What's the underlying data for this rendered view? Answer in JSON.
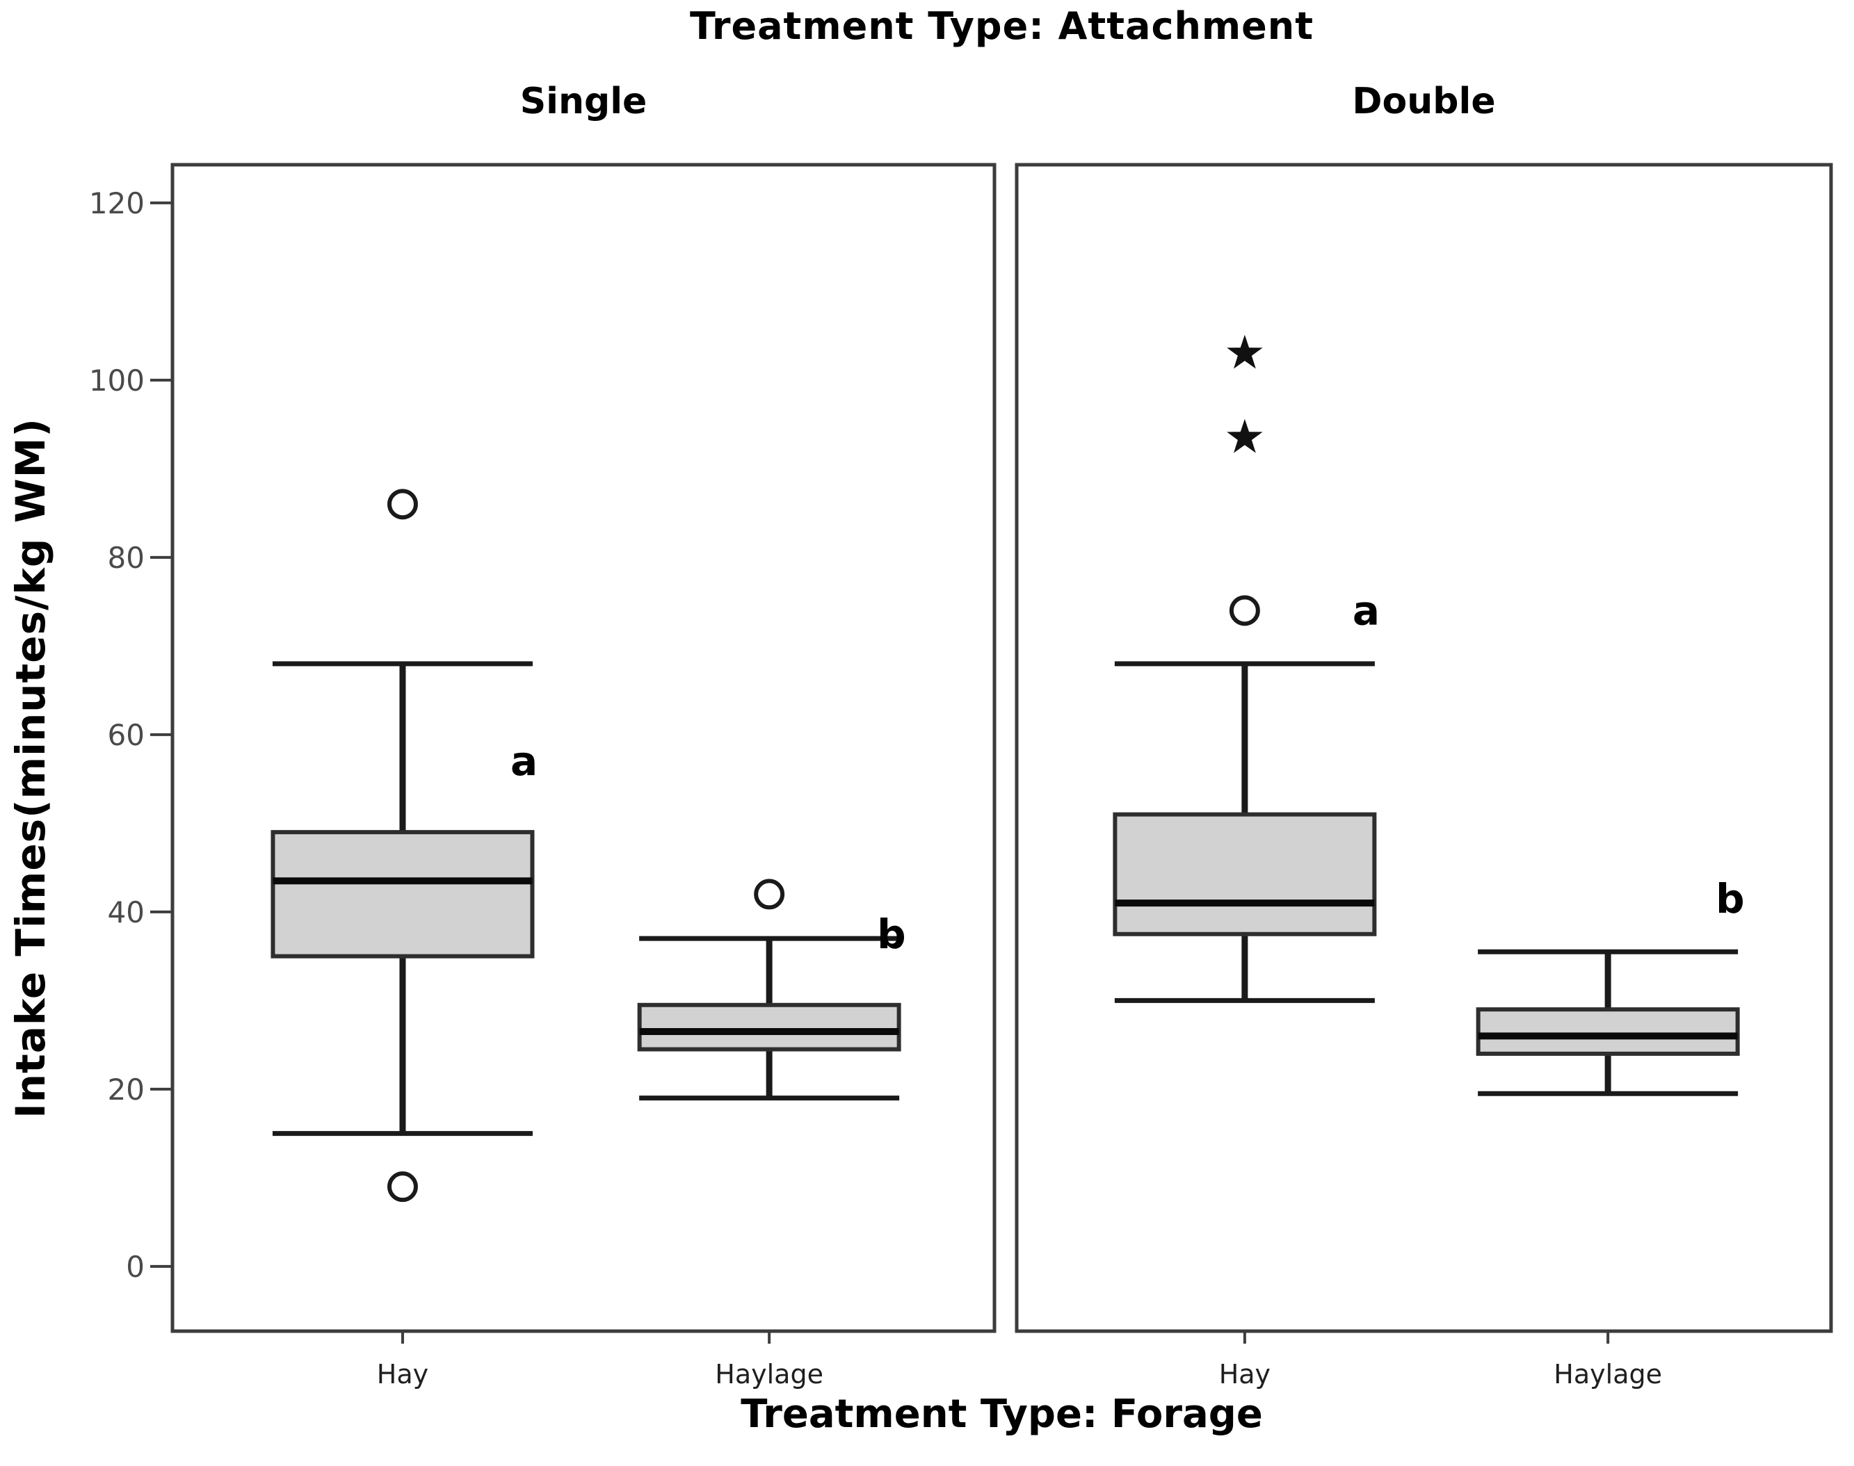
{
  "chart_data": {
    "type": "boxplot",
    "title": "Treatment Type: Attachment",
    "xlabel": "Treatment Type: Forage",
    "ylabel": "Intake Times(minutes/kg WM)",
    "y_ticks": [
      0,
      20,
      40,
      60,
      80,
      100,
      120
    ],
    "ylim": [
      -7.3,
      124.3
    ],
    "grid": false,
    "legend": "none",
    "categories": [
      "Hay",
      "Haylage"
    ],
    "panels": [
      {
        "label": "Single",
        "boxes": [
          {
            "category": "Hay",
            "q1": 35,
            "median": 43.5,
            "q3": 49,
            "whisker_low": 15,
            "whisker_high": 68,
            "outliers": [
              86,
              9
            ],
            "extremes": [],
            "sig_letter": "a",
            "sig_value": 57
          },
          {
            "category": "Haylage",
            "q1": 24.5,
            "median": 26.5,
            "q3": 29.5,
            "whisker_low": 19,
            "whisker_high": 37,
            "outliers": [
              42
            ],
            "extremes": [],
            "sig_letter": "b",
            "sig_value": 37.5
          }
        ]
      },
      {
        "label": "Double",
        "boxes": [
          {
            "category": "Hay",
            "q1": 37.5,
            "median": 41,
            "q3": 51,
            "whisker_low": 30,
            "whisker_high": 68,
            "outliers": [
              74
            ],
            "extremes": [
              103,
              93.5
            ],
            "sig_letter": "a",
            "sig_value": 74
          },
          {
            "category": "Haylage",
            "q1": 24,
            "median": 26,
            "q3": 29,
            "whisker_low": 19.5,
            "whisker_high": 35.5,
            "outliers": [],
            "extremes": [],
            "sig_letter": "b",
            "sig_value": 41.5
          }
        ]
      }
    ],
    "colors": {
      "background": "#ffffff",
      "box_fill": "#d2d2d2",
      "box_border": "#2e2e2e",
      "median_line": "#0a0a0a",
      "whisker": "#1a1a1a",
      "outlier_stroke": "#1a1a1a",
      "extreme_fill": "#111111",
      "panel_border": "#3c3c3c",
      "tick_text": "#4a4a4a",
      "category_text": "#1f1f1f",
      "sig_text": "#000000"
    }
  }
}
